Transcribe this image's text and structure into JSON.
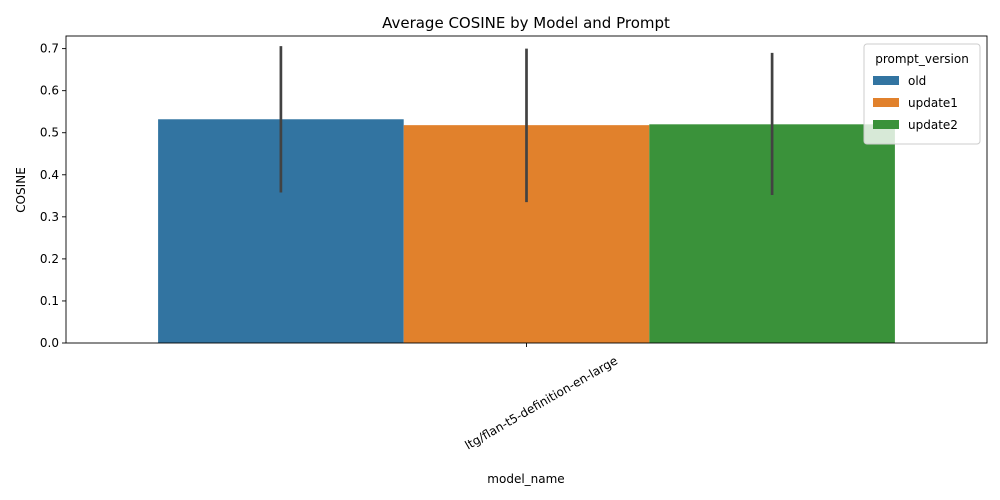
{
  "chart_data": {
    "type": "bar",
    "title": "Average COSINE by Model and Prompt",
    "xlabel": "model_name",
    "ylabel": "COSINE",
    "categories": [
      "ltg/flan-t5-definition-en-large"
    ],
    "ylim": [
      0,
      0.73
    ],
    "yticks": [
      "0.0",
      "0.1",
      "0.2",
      "0.3",
      "0.4",
      "0.5",
      "0.6",
      "0.7"
    ],
    "grid": false,
    "legend": {
      "title": "prompt_version",
      "placement": "top-right"
    },
    "series": [
      {
        "name": "old",
        "color": "#3274a1",
        "values": [
          0.532
        ],
        "error": [
          [
            0.358,
            0.706
          ]
        ]
      },
      {
        "name": "update1",
        "color": "#e1812c",
        "values": [
          0.518
        ],
        "error": [
          [
            0.335,
            0.7
          ]
        ]
      },
      {
        "name": "update2",
        "color": "#3a923a",
        "values": [
          0.52
        ],
        "error": [
          [
            0.352,
            0.69
          ]
        ]
      }
    ]
  }
}
